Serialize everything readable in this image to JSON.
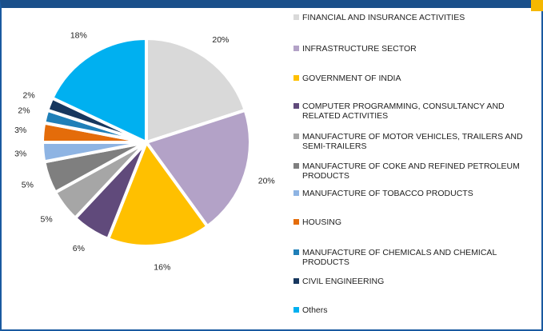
{
  "chart_data": {
    "type": "pie",
    "categories": [
      "FINANCIAL AND INSURANCE ACTIVITIES",
      "INFRASTRUCTURE SECTOR",
      "GOVERNMENT OF INDIA",
      "COMPUTER PROGRAMMING, CONSULTANCY AND RELATED ACTIVITIES",
      "MANUFACTURE OF MOTOR VEHICLES, TRAILERS AND SEMI-TRAILERS",
      "MANUFACTURE OF COKE AND REFINED PETROLEUM PRODUCTS",
      "MANUFACTURE OF TOBACCO PRODUCTS",
      "HOUSING",
      "MANUFACTURE OF CHEMICALS AND CHEMICAL PRODUCTS",
      "CIVIL ENGINEERING",
      "Others"
    ],
    "values": [
      20,
      20,
      16,
      6,
      5,
      5,
      3,
      3,
      2,
      2,
      18
    ],
    "value_labels": [
      "20%",
      "20%",
      "16%",
      "6%",
      "5%",
      "5%",
      "3%",
      "3%",
      "2%",
      "2%",
      "18%"
    ],
    "colors": [
      "#d9d9d9",
      "#b3a2c7",
      "#ffc000",
      "#604a7b",
      "#a6a6a6",
      "#7f7f7f",
      "#8eb4e3",
      "#e46c0a",
      "#1f7fb8",
      "#17375e",
      "#00b0f0"
    ],
    "legend": "right"
  }
}
